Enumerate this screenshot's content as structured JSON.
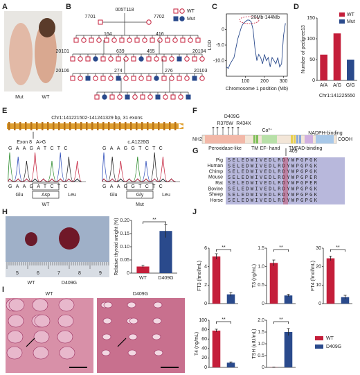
{
  "panel_letters": [
    "A",
    "B",
    "C",
    "D",
    "E",
    "F",
    "G",
    "H",
    "I",
    "J"
  ],
  "panel_a": {
    "labels": [
      "Mut",
      "WT"
    ]
  },
  "panel_b": {
    "founder": "005T118",
    "nodes": [
      "7701",
      "7702",
      "164",
      "416",
      "20101",
      "20104",
      "639",
      "455",
      "20106",
      "274",
      "276",
      "20103"
    ],
    "legend": [
      "WT",
      "Mut"
    ]
  },
  "panel_e": {
    "region": "Chr1:141221502-141241329 bp, 31 exons",
    "exon": "Exon 8",
    "mutation": "A>G",
    "cdna": "c.A1226G",
    "wt_seq": "GAAGATCTC",
    "mut_seq": "GAAGGTCTC",
    "wt_aa": [
      "Glu",
      "Asp",
      "Leu"
    ],
    "mut_aa": [
      "Glu",
      "Gly",
      "Leu"
    ],
    "wt": "WT",
    "mut": "Mut"
  },
  "panel_f": {
    "mutations": [
      "D409G",
      "R376W",
      "R434X"
    ],
    "ends": [
      "NH2",
      "COOH"
    ],
    "domains": [
      "Peroxidase-like",
      "TM",
      "EF- hand",
      "TM",
      "FAD-binding",
      "NADPH-binding"
    ],
    "ion": "Ca²⁺"
  },
  "panel_g": {
    "position": "409",
    "species": [
      "Pig",
      "Human",
      "Chimp",
      "Mouse",
      "Rat",
      "Bovine",
      "Sheep",
      "Horse"
    ],
    "sequences": [
      "SELEDWIVEDLRDYWPGPGK",
      "SELEDWIVEDLRDYWPGPGK",
      "SELEDWIVEDLRDYWPGPGK",
      "SELEDWIVEDLRDYWPGPER",
      "SELEDWIVEDLRDYWPGPER",
      "SELEDWIVEDLRDYWPGPGK",
      "SELEDWIVEDLRDYWPGPGK",
      "SELEDWIVEDLRDYWPGPGK"
    ]
  },
  "panel_h": {
    "ruler": [
      "5",
      "6",
      "7",
      "8",
      "9"
    ],
    "labels": [
      "WT",
      "D409G"
    ]
  },
  "panel_i": {
    "labels": [
      "WT",
      "D409G"
    ]
  },
  "panel_j": {
    "legend": [
      "WT",
      "D409G"
    ],
    "colors": [
      "#c41e3a",
      "#2a4a8c"
    ]
  },
  "chart_data": [
    {
      "type": "line",
      "ylabel": "LOD",
      "xlabel": "Chromosome 1 position (Mb)",
      "annotation": "20Mb-144Mb",
      "color": "#2a4a8c",
      "x": [
        0,
        10,
        20,
        30,
        40,
        50,
        60,
        70,
        80,
        90,
        100,
        110,
        120,
        130,
        140,
        150,
        160,
        170,
        180,
        190,
        200,
        210,
        220,
        230,
        240,
        250,
        260,
        270,
        280,
        290,
        300,
        310
      ],
      "y": [
        -12,
        -12.5,
        -11,
        -10,
        -9,
        -6,
        -3,
        -1,
        1,
        2,
        2.5,
        3,
        3,
        2.5,
        0,
        -6,
        -10,
        -8,
        -9,
        -11,
        -8,
        -10,
        -9,
        -12,
        -9,
        -10,
        -11,
        -9,
        -12,
        -11,
        -2,
        2
      ],
      "xlim": [
        0,
        320
      ],
      "ylim": [
        -15,
        5
      ],
      "xticks": [
        100,
        200,
        300
      ],
      "yticks": [
        0,
        {
          "value": -5,
          "label": "-5.0"
        },
        {
          "value": -10,
          "label": "-10.0"
        }
      ]
    },
    {
      "type": "bar",
      "ylabel": "Number of pedigree13",
      "xlabel": "Chr1:141225550",
      "categories": [
        "A/A",
        "A/G",
        "G/G"
      ],
      "values": [
        62,
        113,
        50
      ],
      "colors": [
        "#c41e3a",
        "#c41e3a",
        "#2a4a8c"
      ],
      "legend": [
        "WT",
        "Mut"
      ],
      "legend_colors": [
        "#c41e3a",
        "#2a4a8c"
      ],
      "ylim": [
        0,
        150
      ],
      "yticks": [
        0,
        50,
        100,
        150
      ]
    },
    {
      "type": "bar",
      "ylabel": "Relative thyroid weight (%)",
      "categories": [
        "WT",
        "D409G"
      ],
      "values": [
        0.025,
        0.16
      ],
      "errors": [
        0.005,
        0.025
      ],
      "colors": [
        "#c41e3a",
        "#2a4a8c"
      ],
      "annotation": "**",
      "ylim": [
        0,
        0.2
      ],
      "yticks": [
        0,
        0.05,
        {
          "value": 0.1,
          "label": "0.10"
        },
        0.15,
        {
          "value": 0.2,
          "label": "0.20"
        }
      ]
    },
    {
      "type": "bar",
      "ylabel": "FT3 (fmol/mL)",
      "values": [
        5.1,
        1.0
      ],
      "errors": [
        0.3,
        0.2
      ],
      "colors": [
        "#c41e3a",
        "#2a4a8c"
      ],
      "annotation": "**",
      "ylim": [
        0,
        6
      ],
      "yticks": [
        0,
        2,
        4,
        6
      ]
    },
    {
      "type": "bar",
      "ylabel": "T3 (ng/mL)",
      "values": [
        1.1,
        0.22
      ],
      "errors": [
        0.08,
        0.03
      ],
      "colors": [
        "#c41e3a",
        "#2a4a8c"
      ],
      "annotation": "**",
      "ylim": [
        0,
        1.5
      ],
      "yticks": [
        0,
        0.5,
        {
          "value": 1,
          "label": "1.0"
        },
        1.5
      ]
    },
    {
      "type": "bar",
      "ylabel": "FT4 (fmol/mL)",
      "values": [
        24.5,
        3.5
      ],
      "errors": [
        1.2,
        1.0
      ],
      "colors": [
        "#c41e3a",
        "#2a4a8c"
      ],
      "annotation": "**",
      "ylim": [
        0,
        30
      ],
      "yticks": [
        0,
        10,
        20,
        30
      ]
    },
    {
      "type": "bar",
      "ylabel": "T4 (ng/mL)",
      "values": [
        78,
        10
      ],
      "errors": [
        3,
        1.5
      ],
      "colors": [
        "#c41e3a",
        "#2a4a8c"
      ],
      "annotation": "**",
      "ylim": [
        0,
        100
      ],
      "yticks": [
        0,
        20,
        40,
        60,
        80,
        100
      ]
    },
    {
      "type": "bar",
      "ylabel": "TSH (uIU/mL)",
      "values": [
        0.01,
        1.5
      ],
      "errors": [
        0.005,
        0.15
      ],
      "colors": [
        "#c41e3a",
        "#2a4a8c"
      ],
      "annotation": "**",
      "ylim": [
        0,
        2
      ],
      "yticks": [
        0,
        0.5,
        {
          "value": 1,
          "label": "1.0"
        },
        1.5,
        {
          "value": 2,
          "label": "2.0"
        }
      ]
    }
  ]
}
